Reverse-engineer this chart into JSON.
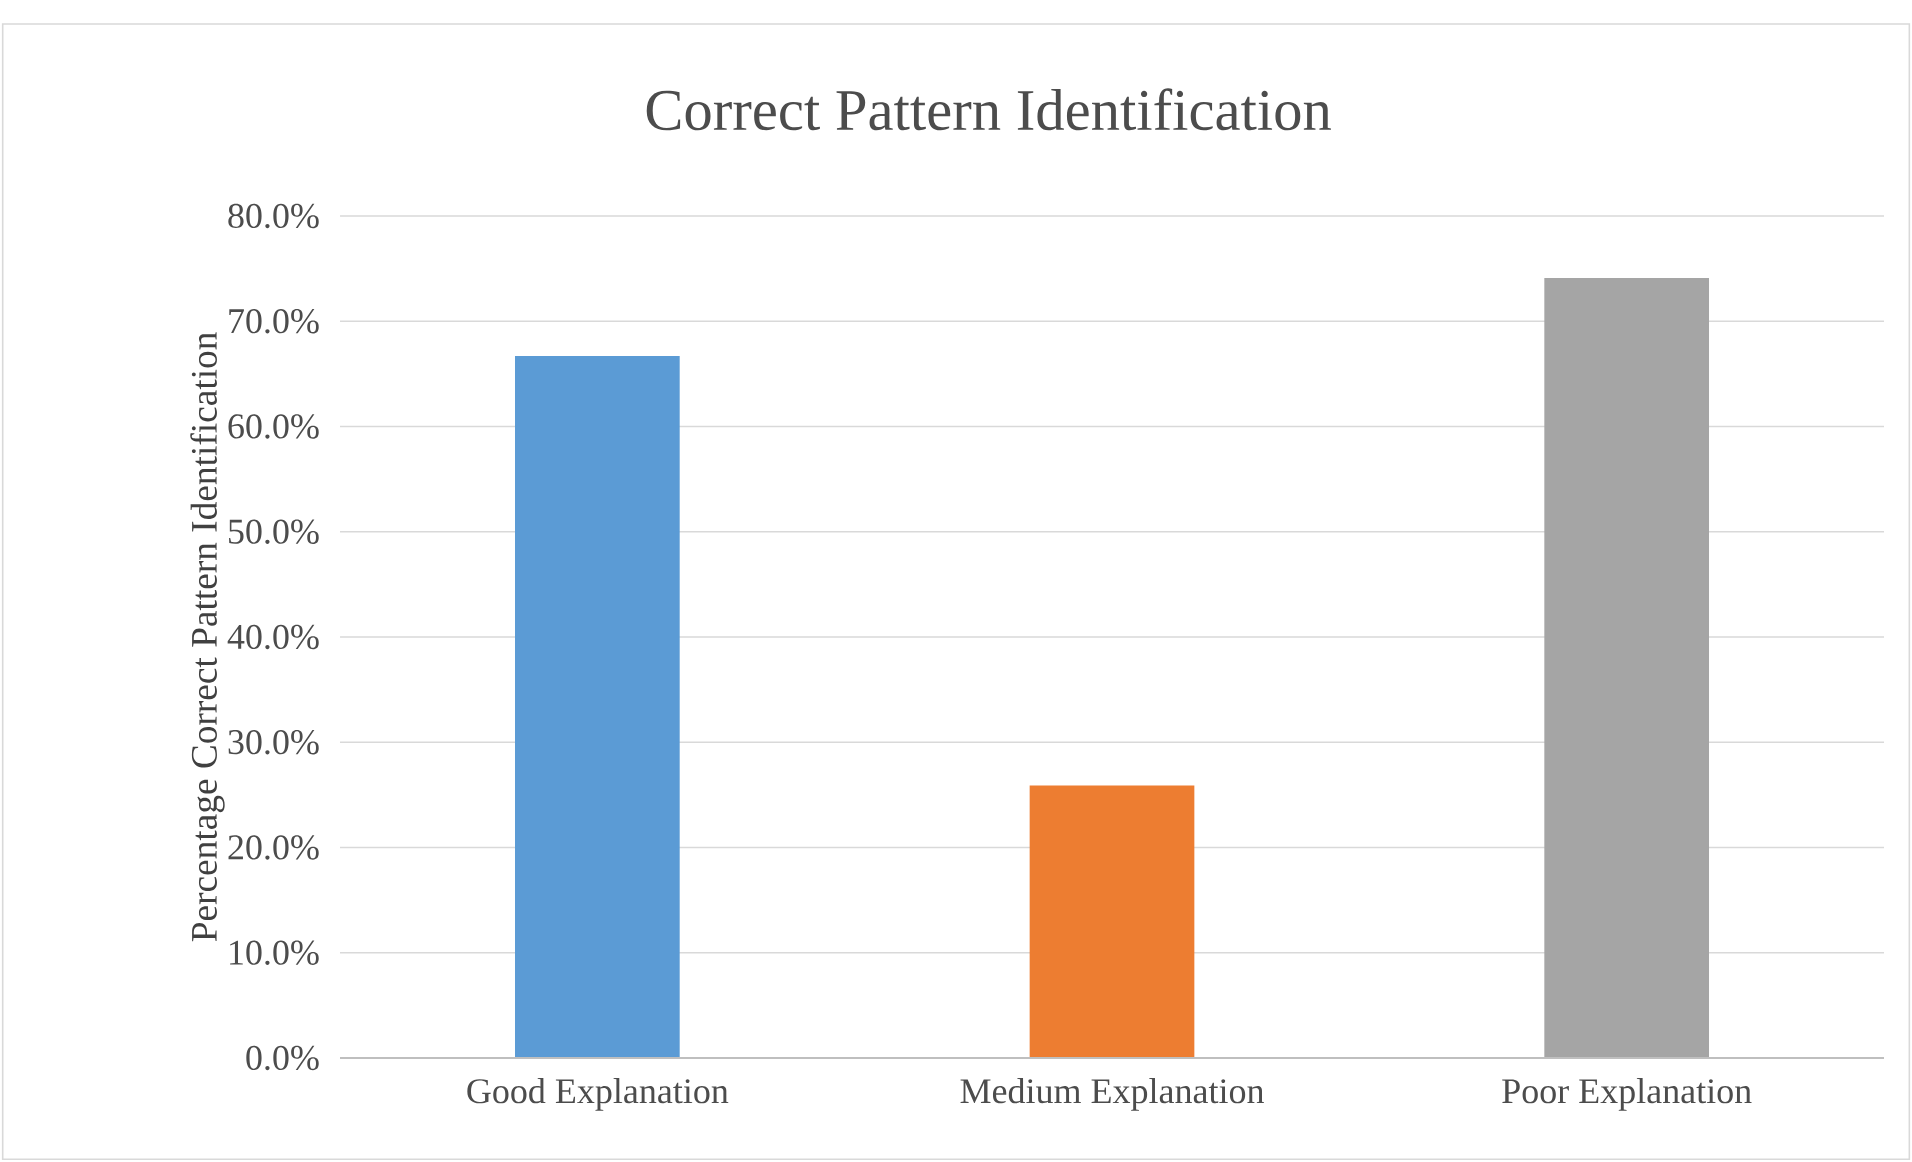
{
  "chart_data": {
    "type": "bar",
    "title": "Correct Pattern Identification",
    "ylabel": "Percentage Correct Pattern Identification",
    "categories": [
      "Good Explanation",
      "Medium Explanation",
      "Poor Explanation"
    ],
    "values": [
      66.7,
      25.9,
      74.1
    ],
    "colors": [
      "#5b9bd5",
      "#ed7d31",
      "#a5a5a5"
    ],
    "ylim": [
      0,
      80
    ],
    "yticks": [
      {
        "value": 0,
        "label": "0.0%"
      },
      {
        "value": 10,
        "label": "10.0%"
      },
      {
        "value": 20,
        "label": "20.0%"
      },
      {
        "value": 30,
        "label": "30.0%"
      },
      {
        "value": 40,
        "label": "40.0%"
      },
      {
        "value": 50,
        "label": "50.0%"
      },
      {
        "value": 60,
        "label": "60.0%"
      },
      {
        "value": 70,
        "label": "70.0%"
      },
      {
        "value": 80,
        "label": "80.0%"
      }
    ],
    "grid": "y"
  }
}
